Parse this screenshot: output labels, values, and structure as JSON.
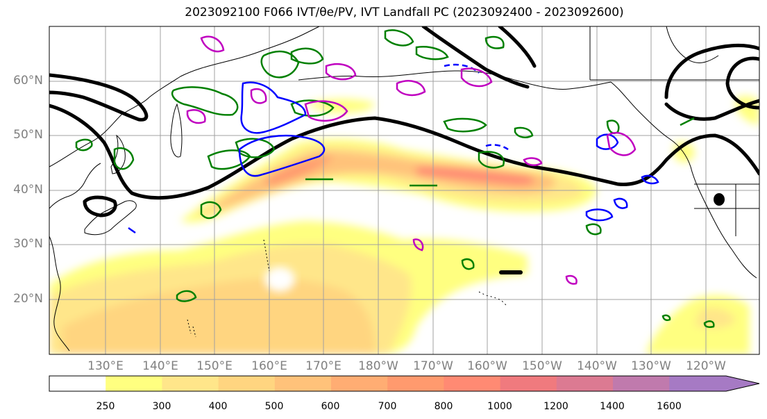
{
  "title": "2023092100 F066 IVT/θe/PV, IVT Landfall PC (2023092400 - 2023092600)",
  "map": {
    "lat_labels": [
      "60°N",
      "50°N",
      "40°N",
      "30°N",
      "20°N"
    ],
    "lon_labels": [
      "130°E",
      "140°E",
      "150°E",
      "160°E",
      "170°E",
      "180°W",
      "170°W",
      "160°W",
      "150°W",
      "140°W",
      "130°W",
      "120°W"
    ]
  },
  "colorbar": {
    "levels": [
      "250",
      "300",
      "400",
      "500",
      "600",
      "700",
      "800",
      "1000",
      "1200",
      "1400",
      "1600"
    ],
    "colors": [
      "#ffffff",
      "#ffff80",
      "#ffe68a",
      "#ffd580",
      "#ffc27a",
      "#ffad73",
      "#ff9a6e",
      "#ff8a73",
      "#f07a7e",
      "#dc7a92",
      "#c07aad",
      "#a67ac4"
    ]
  },
  "colors": {
    "ivt_low": "#ffff80",
    "ivt_high": "#ff7a7a",
    "thetae_contour": "#008000",
    "pv_contour": "#0000ff",
    "pc_contour": "#c000c0",
    "jet_contour": "#000000"
  }
}
